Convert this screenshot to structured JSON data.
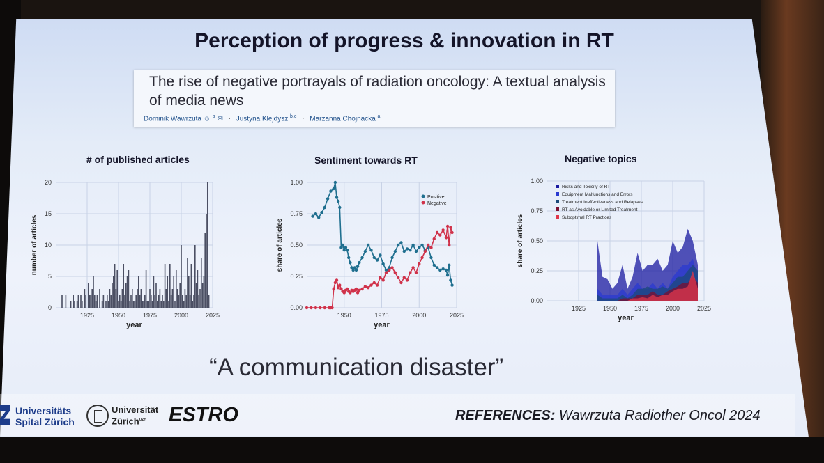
{
  "slide": {
    "title": "Perception of progress & innovation in RT",
    "paper_title": "The rise of negative portrayals of radiation oncology: A textual analysis of media news",
    "authors": [
      {
        "name": "Dominik Wawrzuta",
        "aff": "a"
      },
      {
        "name": "Justyna Klejdysz",
        "aff": "b,c"
      },
      {
        "name": "Marzanna Chojnacka",
        "aff": "a"
      }
    ],
    "quote": "“A communication disaster”",
    "references_label": "REFERENCES:",
    "references_text": "Wawrzuta Radiother Oncol 2024"
  },
  "logos": {
    "usz_line1": "Universitäts",
    "usz_line2": "Spital Zürich",
    "uzh_line1": "Universität",
    "uzh_line2": "Zürich",
    "uzh_sup": "UZH",
    "estro": "ESTRO"
  },
  "colors": {
    "positive": "#1f6f8f",
    "negative": "#d0324a",
    "bars": "#4b4f63",
    "topic_colors": [
      "#1a1aa0",
      "#2a3ad0",
      "#1c4a7a",
      "#7a0f30",
      "#e0364a"
    ]
  },
  "chart_data": [
    {
      "type": "bar",
      "title": "# of published articles",
      "xlabel": "year",
      "ylabel": "number of articles",
      "xlim": [
        1900,
        2025
      ],
      "ylim": [
        0,
        20
      ],
      "xticks": [
        1925,
        1950,
        1975,
        2000,
        2025
      ],
      "yticks": [
        0,
        5,
        10,
        15,
        20
      ],
      "grid": true,
      "x": [
        1905,
        1908,
        1912,
        1914,
        1915,
        1917,
        1918,
        1920,
        1921,
        1923,
        1924,
        1926,
        1927,
        1928,
        1929,
        1930,
        1931,
        1932,
        1933,
        1935,
        1937,
        1938,
        1940,
        1941,
        1942,
        1943,
        1944,
        1945,
        1946,
        1947,
        1948,
        1949,
        1950,
        1951,
        1952,
        1953,
        1954,
        1955,
        1956,
        1957,
        1958,
        1959,
        1960,
        1961,
        1962,
        1963,
        1964,
        1965,
        1966,
        1967,
        1968,
        1969,
        1970,
        1971,
        1972,
        1973,
        1974,
        1975,
        1976,
        1977,
        1978,
        1979,
        1980,
        1981,
        1982,
        1983,
        1984,
        1985,
        1986,
        1987,
        1988,
        1989,
        1990,
        1991,
        1992,
        1993,
        1994,
        1995,
        1996,
        1997,
        1998,
        1999,
        2000,
        2001,
        2002,
        2003,
        2004,
        2005,
        2006,
        2007,
        2008,
        2009,
        2010,
        2011,
        2012,
        2013,
        2014,
        2015,
        2016,
        2017,
        2018,
        2019,
        2020,
        2021,
        2022
      ],
      "values": [
        2,
        2,
        1,
        2,
        1,
        1,
        2,
        2,
        1,
        3,
        2,
        4,
        2,
        2,
        3,
        5,
        2,
        1,
        2,
        3,
        1,
        2,
        1,
        2,
        1,
        3,
        2,
        4,
        5,
        7,
        3,
        6,
        1,
        2,
        1,
        3,
        7,
        2,
        4,
        5,
        6,
        1,
        2,
        3,
        1,
        1,
        2,
        3,
        5,
        2,
        3,
        1,
        1,
        2,
        6,
        1,
        1,
        3,
        2,
        1,
        5,
        2,
        4,
        1,
        2,
        3,
        1,
        2,
        1,
        7,
        3,
        5,
        1,
        7,
        2,
        3,
        5,
        1,
        6,
        3,
        2,
        4,
        10,
        2,
        1,
        3,
        2,
        8,
        5,
        2,
        7,
        1,
        2,
        10,
        4,
        6,
        2,
        3,
        8,
        4,
        5,
        12,
        15,
        20,
        2
      ]
    },
    {
      "type": "line",
      "title": "Sentiment towards RT",
      "xlabel": "year",
      "ylabel": "share of articles",
      "xlim": [
        1925,
        2025
      ],
      "ylim": [
        0,
        1
      ],
      "xticks": [
        1950,
        1975,
        2000,
        2025
      ],
      "yticks": [
        0,
        0.25,
        0.5,
        0.75,
        1.0
      ],
      "ytick_labels": [
        "0.00",
        "0.25",
        "0.50",
        "0.75",
        "1.00"
      ],
      "grid": true,
      "legend_position": "top-right",
      "series": [
        {
          "name": "Positive",
          "x": [
            1929,
            1931,
            1933,
            1935,
            1937,
            1939,
            1941,
            1943,
            1944,
            1945,
            1946,
            1947,
            1948,
            1949,
            1950,
            1951,
            1952,
            1953,
            1954,
            1955,
            1956,
            1957,
            1958,
            1959,
            1960,
            1962,
            1964,
            1966,
            1968,
            1970,
            1972,
            1974,
            1976,
            1978,
            1980,
            1982,
            1984,
            1986,
            1988,
            1990,
            1992,
            1994,
            1996,
            1998,
            2000,
            2002,
            2004,
            2006,
            2008,
            2010,
            2012,
            2014,
            2016,
            2018,
            2019,
            2020,
            2021,
            2022
          ],
          "values": [
            0.73,
            0.75,
            0.72,
            0.76,
            0.8,
            0.87,
            0.93,
            0.95,
            1.0,
            0.88,
            0.85,
            0.8,
            0.48,
            0.5,
            0.46,
            0.48,
            0.46,
            0.4,
            0.36,
            0.32,
            0.3,
            0.32,
            0.3,
            0.33,
            0.36,
            0.4,
            0.45,
            0.5,
            0.46,
            0.4,
            0.38,
            0.42,
            0.35,
            0.3,
            0.32,
            0.4,
            0.45,
            0.5,
            0.52,
            0.45,
            0.47,
            0.46,
            0.5,
            0.45,
            0.48,
            0.5,
            0.46,
            0.48,
            0.4,
            0.34,
            0.32,
            0.3,
            0.31,
            0.3,
            0.26,
            0.34,
            0.22,
            0.18
          ]
        },
        {
          "name": "Negative",
          "x": [
            1925,
            1928,
            1931,
            1934,
            1937,
            1940,
            1941,
            1942,
            1943,
            1944,
            1945,
            1946,
            1947,
            1948,
            1949,
            1950,
            1951,
            1952,
            1953,
            1954,
            1955,
            1956,
            1957,
            1958,
            1959,
            1960,
            1962,
            1964,
            1966,
            1968,
            1970,
            1972,
            1974,
            1976,
            1978,
            1980,
            1982,
            1984,
            1986,
            1988,
            1990,
            1992,
            1994,
            1996,
            1998,
            2000,
            2002,
            2004,
            2006,
            2008,
            2010,
            2012,
            2014,
            2016,
            2018,
            2019,
            2020,
            2021,
            2022
          ],
          "values": [
            0,
            0,
            0,
            0,
            0,
            0,
            0,
            0,
            0.15,
            0.2,
            0.22,
            0.16,
            0.18,
            0.15,
            0.13,
            0.12,
            0.14,
            0.15,
            0.13,
            0.12,
            0.14,
            0.13,
            0.14,
            0.15,
            0.12,
            0.14,
            0.15,
            0.17,
            0.16,
            0.18,
            0.2,
            0.18,
            0.24,
            0.22,
            0.28,
            0.3,
            0.32,
            0.28,
            0.24,
            0.2,
            0.24,
            0.22,
            0.28,
            0.32,
            0.28,
            0.35,
            0.4,
            0.45,
            0.5,
            0.48,
            0.55,
            0.6,
            0.58,
            0.62,
            0.56,
            0.65,
            0.5,
            0.64,
            0.6
          ]
        }
      ]
    },
    {
      "type": "area",
      "title": "Negative topics",
      "xlabel": "year",
      "ylabel": "share of articles",
      "xlim": [
        1900,
        2025
      ],
      "ylim": [
        0,
        1
      ],
      "xticks": [
        1925,
        1950,
        1975,
        2000,
        2025
      ],
      "yticks": [
        0,
        0.25,
        0.5,
        0.75,
        1.0
      ],
      "ytick_labels": [
        "0.00",
        "0.25",
        "0.50",
        "0.75",
        "1.00"
      ],
      "grid": true,
      "legend_position": "top-left",
      "series": [
        {
          "name": "Risks and Toxicity of RT",
          "x": [
            1940,
            1944,
            1948,
            1952,
            1956,
            1960,
            1964,
            1968,
            1972,
            1976,
            1980,
            1984,
            1988,
            1992,
            1996,
            2000,
            2004,
            2008,
            2012,
            2016,
            2020
          ],
          "values": [
            0.5,
            0.2,
            0.18,
            0.1,
            0.15,
            0.3,
            0.1,
            0.2,
            0.4,
            0.25,
            0.3,
            0.3,
            0.35,
            0.25,
            0.3,
            0.5,
            0.4,
            0.45,
            0.6,
            0.5,
            0.3
          ]
        },
        {
          "name": "Equipment Malfunctions and Errors",
          "x": [
            1940,
            1944,
            1948,
            1952,
            1956,
            1960,
            1964,
            1968,
            1972,
            1976,
            1980,
            1984,
            1988,
            1992,
            1996,
            2000,
            2004,
            2008,
            2012,
            2016,
            2020
          ],
          "values": [
            0.1,
            0.05,
            0.05,
            0.05,
            0.05,
            0.1,
            0.05,
            0.1,
            0.15,
            0.1,
            0.1,
            0.15,
            0.1,
            0.15,
            0.1,
            0.2,
            0.25,
            0.3,
            0.3,
            0.35,
            0.2
          ]
        },
        {
          "name": "Treatment Ineffectiveness and Relapses",
          "x": [
            1940,
            1944,
            1948,
            1952,
            1956,
            1960,
            1964,
            1968,
            1972,
            1976,
            1980,
            1984,
            1988,
            1992,
            1996,
            2000,
            2004,
            2008,
            2012,
            2016,
            2020
          ],
          "values": [
            0.05,
            0.02,
            0.02,
            0.02,
            0.02,
            0.05,
            0.02,
            0.05,
            0.1,
            0.1,
            0.12,
            0.1,
            0.1,
            0.12,
            0.1,
            0.15,
            0.2,
            0.2,
            0.25,
            0.3,
            0.25
          ]
        },
        {
          "name": "RT as Avoidable or Limited Treatment",
          "x": [
            1940,
            1944,
            1948,
            1952,
            1956,
            1960,
            1964,
            1968,
            1972,
            1976,
            1980,
            1984,
            1988,
            1992,
            1996,
            2000,
            2004,
            2008,
            2012,
            2016,
            2020
          ],
          "values": [
            0,
            0,
            0,
            0,
            0,
            0.02,
            0.02,
            0.02,
            0.05,
            0.05,
            0.05,
            0.08,
            0.05,
            0.05,
            0.08,
            0.1,
            0.12,
            0.15,
            0.15,
            0.2,
            0.15
          ]
        },
        {
          "name": "Suboptimal RT Practices",
          "x": [
            1940,
            1944,
            1948,
            1952,
            1956,
            1960,
            1964,
            1968,
            1972,
            1976,
            1980,
            1984,
            1988,
            1992,
            1996,
            2000,
            2004,
            2008,
            2012,
            2016,
            2020
          ],
          "values": [
            0,
            0,
            0,
            0,
            0,
            0,
            0,
            0.02,
            0.02,
            0.03,
            0.02,
            0.05,
            0.03,
            0.05,
            0.05,
            0.08,
            0.1,
            0.1,
            0.12,
            0.25,
            0.1
          ]
        }
      ]
    }
  ]
}
